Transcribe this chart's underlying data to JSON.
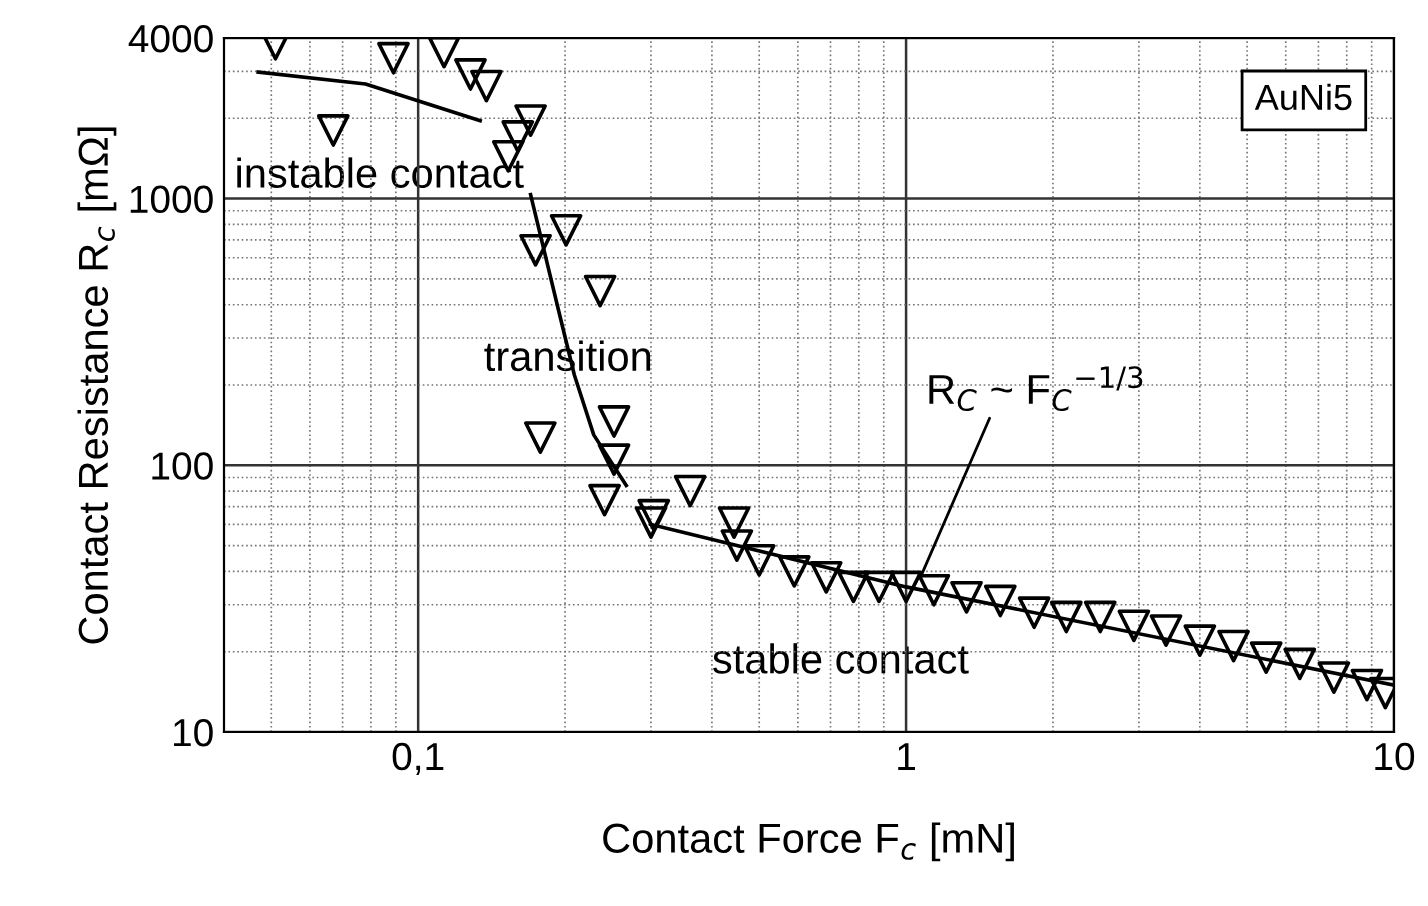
{
  "chart_data": {
    "type": "scatter",
    "xlabel": "Contact Force F$_{c}$ [mN]",
    "ylabel": "Contact Resistance R$_{c}$ [mΩ]",
    "log": "xy",
    "xlim": [
      0.04,
      10
    ],
    "ylim": [
      10,
      4000
    ],
    "xticks": [
      {
        "value": 0.1,
        "label": "0,1"
      },
      1,
      10
    ],
    "yticks": [
      10,
      100,
      1000,
      4000
    ],
    "grid": true,
    "legend": false,
    "series": [
      {
        "marker": "triangle",
        "color": "#000000",
        "x": [
          0.051,
          0.067,
          0.089,
          0.113,
          0.128,
          0.138,
          0.17,
          0.16,
          0.153,
          0.201,
          0.174,
          0.236,
          0.178,
          0.252,
          0.252,
          0.241,
          0.361,
          0.304,
          0.3,
          0.444,
          0.45,
          0.5,
          0.59,
          0.686,
          0.78,
          0.88,
          1.0,
          1.14,
          1.33,
          1.56,
          1.83,
          2.13,
          2.5,
          2.93,
          3.41,
          4.0,
          4.69,
          5.47,
          6.41,
          7.53,
          8.8,
          9.6
        ],
        "values": [
          3790,
          1800,
          3360,
          3540,
          2920,
          2640,
          1960,
          1710,
          1440,
          760,
          640,
          450,
          127,
          146,
          105,
          74,
          80,
          65,
          61,
          61,
          50,
          44,
          40,
          38,
          35,
          35,
          35,
          34,
          32,
          31,
          28,
          27,
          27,
          25,
          24,
          22,
          21,
          19,
          18,
          16,
          15,
          14
        ]
      },
      {
        "type": "line",
        "color": "#000000",
        "x": [
          0.047,
          0.078,
          0.134
        ],
        "values": [
          2980,
          2690,
          1960
        ]
      },
      {
        "type": "line",
        "color": "#000000",
        "x": [
          0.17,
          0.195,
          0.209,
          0.229,
          0.267
        ],
        "values": [
          1035,
          366,
          218,
          130,
          84
        ]
      },
      {
        "type": "line",
        "color": "#000000",
        "x": [
          0.3,
          0.45,
          1.0,
          10
        ],
        "values": [
          60,
          50,
          35,
          15
        ]
      }
    ],
    "annotations": [
      "instable contact",
      "transition",
      "stable contact",
      {
        "text": "R$_{C}$ ~ F$_{C}$$^{−1/3}$",
        "x": 1.07,
        "y": 38
      },
      "AuNi5"
    ]
  }
}
